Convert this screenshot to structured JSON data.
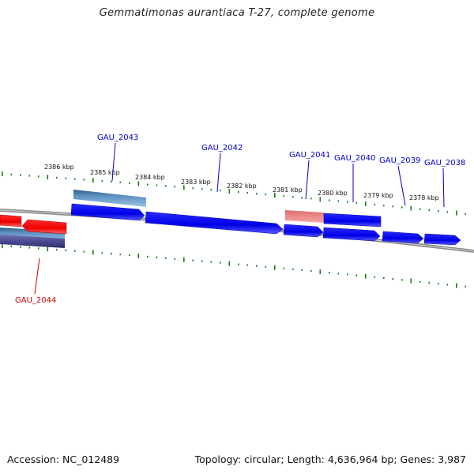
{
  "title": "Gemmatimonas aurantiaca T-27, complete genome",
  "footer": {
    "accession": "Accession: NC_012489",
    "stats": "Topology: circular; Length: 4,636,964 bp; Genes: 3,987"
  },
  "ticks": [
    "2386 kbp",
    "2385 kbp",
    "2384 kbp",
    "2383 kbp",
    "2382 kbp",
    "2381 kbp",
    "2380 kbp",
    "2379 kbp",
    "2378 kbp"
  ],
  "genes": [
    {
      "name": "GAU_2044",
      "strand": "minus",
      "color": "#d40000"
    },
    {
      "name": "GAU_2043",
      "strand": "plus",
      "color": "#0000cc"
    },
    {
      "name": "GAU_2042",
      "strand": "plus",
      "color": "#0000cc"
    },
    {
      "name": "GAU_2041",
      "strand": "plus",
      "color": "#0000cc"
    },
    {
      "name": "GAU_2040",
      "strand": "plus",
      "color": "#0000cc"
    },
    {
      "name": "GAU_2039",
      "strand": "plus",
      "color": "#0000cc"
    },
    {
      "name": "GAU_2038",
      "strand": "plus",
      "color": "#0000cc"
    }
  ],
  "colors": {
    "plus_gene": "#0000ee",
    "minus_gene": "#ee0000",
    "tick": "#1a7a1a",
    "backbone": "#8c8c8c"
  }
}
